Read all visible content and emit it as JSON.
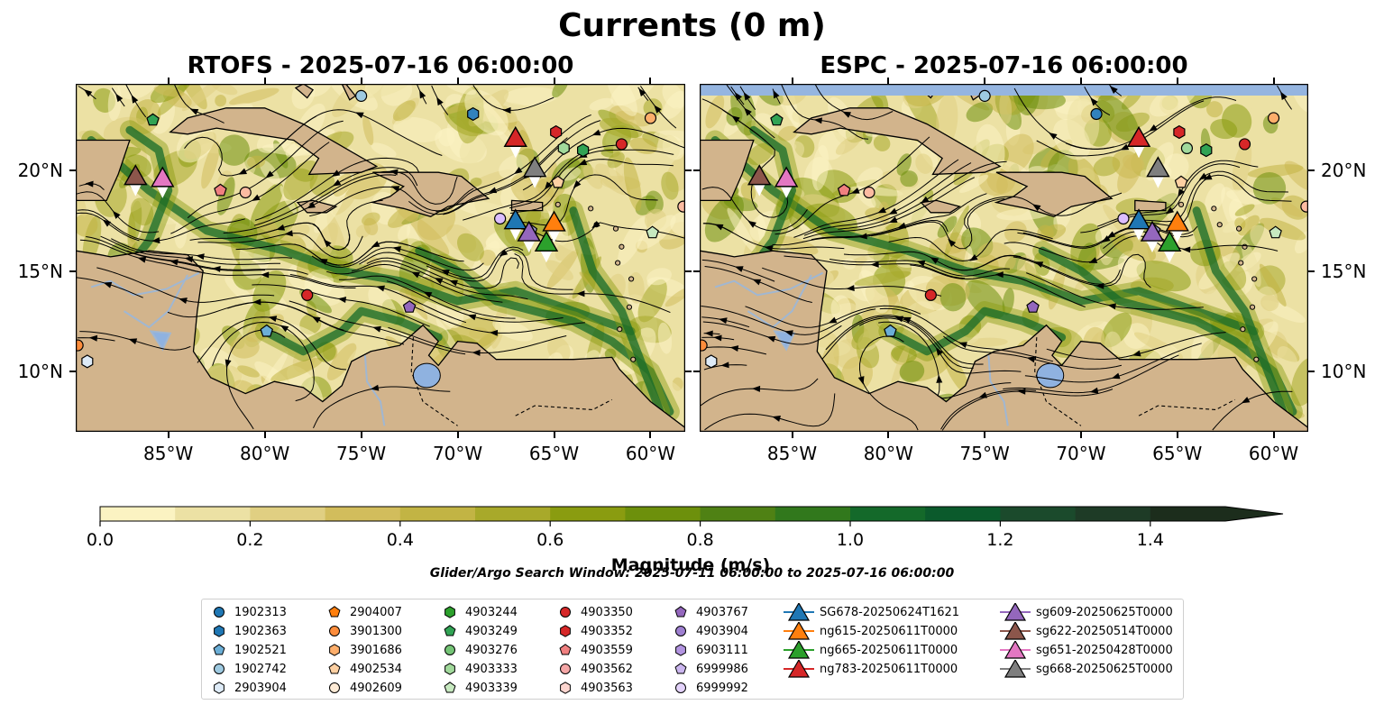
{
  "figure": {
    "suptitle": "Currents (0 m)",
    "search_window": "Glider/Argo Search Window: 2025-07-11 06:00:00 to 2025-07-16 06:00:00"
  },
  "chart_data": [
    {
      "type": "heatmap",
      "title": "RTOFS - 2025-07-16 06:00:00",
      "x_tick_labels": [
        "85°W",
        "80°W",
        "75°W",
        "70°W",
        "65°W",
        "60°W"
      ],
      "y_tick_labels": [
        "20°N",
        "15°N",
        "10°N"
      ],
      "x_range": [
        -89.8,
        -58.2
      ],
      "y_range": [
        7.0,
        24.3
      ],
      "x_ticks": [
        -85,
        -80,
        -75,
        -70,
        -65,
        -60
      ],
      "y_ticks": [
        20,
        15,
        10
      ],
      "markers": [
        {
          "lon": -75.0,
          "lat": 23.7,
          "color": "#9ecae1",
          "shape": "circle"
        },
        {
          "lon": -69.2,
          "lat": 22.8,
          "color": "#3182bd",
          "shape": "hexagon"
        },
        {
          "lon": -60.0,
          "lat": 22.6,
          "color": "#fdae6b",
          "shape": "circle"
        },
        {
          "lon": -61.5,
          "lat": 21.3,
          "color": "#d62728",
          "shape": "circle"
        },
        {
          "lon": -85.8,
          "lat": 22.5,
          "color": "#31a354",
          "shape": "pentagon"
        },
        {
          "lon": -64.9,
          "lat": 21.9,
          "color": "#d62728",
          "shape": "hexagon"
        },
        {
          "lon": -64.5,
          "lat": 21.1,
          "color": "#a1d99b",
          "shape": "hexagon"
        },
        {
          "lon": -63.5,
          "lat": 21.0,
          "color": "#31a354",
          "shape": "hexagon"
        },
        {
          "lon": -82.3,
          "lat": 19.0,
          "color": "#f08080",
          "shape": "pentagon"
        },
        {
          "lon": -81.0,
          "lat": 18.9,
          "color": "#fcbba1",
          "shape": "circle"
        },
        {
          "lon": -64.8,
          "lat": 19.4,
          "color": "#fdd0a2",
          "shape": "pentagon"
        },
        {
          "lon": -67.8,
          "lat": 17.6,
          "color": "#dcbeff",
          "shape": "circle"
        },
        {
          "lon": -66.2,
          "lat": 17.0,
          "color": "#9e9ac8",
          "shape": "pentagon"
        },
        {
          "lon": -58.3,
          "lat": 18.2,
          "color": "#fcbba1",
          "shape": "circle"
        },
        {
          "lon": -59.9,
          "lat": 16.9,
          "color": "#c7e9c0",
          "shape": "pentagon"
        },
        {
          "lon": -77.8,
          "lat": 13.8,
          "color": "#d62728",
          "shape": "circle"
        },
        {
          "lon": -72.5,
          "lat": 13.2,
          "color": "#9467bd",
          "shape": "pentagon"
        },
        {
          "lon": -79.9,
          "lat": 12.0,
          "color": "#6baed6",
          "shape": "pentagon"
        },
        {
          "lon": -89.7,
          "lat": 11.3,
          "color": "#fd8d3c",
          "shape": "circle"
        },
        {
          "lon": -89.2,
          "lat": 10.5,
          "color": "#deebf7",
          "shape": "hexagon"
        }
      ],
      "gliders": [
        {
          "lon": -67.0,
          "lat": 21.6,
          "color": "#d62728"
        },
        {
          "lon": -66.0,
          "lat": 20.1,
          "color": "#7f7f7f"
        },
        {
          "lon": -86.7,
          "lat": 19.7,
          "color": "#8c564b"
        },
        {
          "lon": -85.3,
          "lat": 19.6,
          "color": "#e377c2"
        },
        {
          "lon": -67.0,
          "lat": 17.5,
          "color": "#1f77b4"
        },
        {
          "lon": -65.0,
          "lat": 17.4,
          "color": "#ff7f0e"
        },
        {
          "lon": -66.3,
          "lat": 16.9,
          "color": "#9467bd"
        },
        {
          "lon": -65.4,
          "lat": 16.4,
          "color": "#2ca02c"
        }
      ]
    },
    {
      "type": "heatmap",
      "title": "ESPC - 2025-07-16 06:00:00",
      "x_tick_labels": [
        "85°W",
        "80°W",
        "75°W",
        "70°W",
        "65°W",
        "60°W"
      ],
      "y_tick_labels": [
        "20°N",
        "15°N",
        "10°N"
      ],
      "x_range": [
        -89.8,
        -58.2
      ],
      "y_range": [
        7.0,
        24.3
      ],
      "x_ticks": [
        -85,
        -80,
        -75,
        -70,
        -65,
        -60
      ],
      "y_ticks": [
        20,
        15,
        10
      ],
      "markers": [
        {
          "lon": -75.0,
          "lat": 23.7,
          "color": "#9ecae1",
          "shape": "circle"
        },
        {
          "lon": -69.2,
          "lat": 22.8,
          "color": "#3182bd",
          "shape": "circle"
        },
        {
          "lon": -60.0,
          "lat": 22.6,
          "color": "#fdae6b",
          "shape": "circle"
        },
        {
          "lon": -61.5,
          "lat": 21.3,
          "color": "#d62728",
          "shape": "circle"
        },
        {
          "lon": -85.8,
          "lat": 22.5,
          "color": "#31a354",
          "shape": "pentagon"
        },
        {
          "lon": -64.9,
          "lat": 21.9,
          "color": "#d62728",
          "shape": "hexagon"
        },
        {
          "lon": -64.5,
          "lat": 21.1,
          "color": "#a1d99b",
          "shape": "circle"
        },
        {
          "lon": -63.5,
          "lat": 21.0,
          "color": "#31a354",
          "shape": "hexagon"
        },
        {
          "lon": -82.3,
          "lat": 19.0,
          "color": "#f08080",
          "shape": "pentagon"
        },
        {
          "lon": -81.0,
          "lat": 18.9,
          "color": "#fcbba1",
          "shape": "circle"
        },
        {
          "lon": -64.8,
          "lat": 19.4,
          "color": "#fdd0a2",
          "shape": "pentagon"
        },
        {
          "lon": -67.8,
          "lat": 17.6,
          "color": "#dcbeff",
          "shape": "circle"
        },
        {
          "lon": -66.2,
          "lat": 17.0,
          "color": "#9e9ac8",
          "shape": "pentagon"
        },
        {
          "lon": -58.3,
          "lat": 18.2,
          "color": "#fcbba1",
          "shape": "circle"
        },
        {
          "lon": -59.9,
          "lat": 16.9,
          "color": "#c7e9c0",
          "shape": "pentagon"
        },
        {
          "lon": -77.8,
          "lat": 13.8,
          "color": "#d62728",
          "shape": "circle"
        },
        {
          "lon": -72.5,
          "lat": 13.2,
          "color": "#9467bd",
          "shape": "pentagon"
        },
        {
          "lon": -79.9,
          "lat": 12.0,
          "color": "#6baed6",
          "shape": "pentagon"
        },
        {
          "lon": -89.7,
          "lat": 11.3,
          "color": "#fd8d3c",
          "shape": "circle"
        },
        {
          "lon": -89.2,
          "lat": 10.5,
          "color": "#deebf7",
          "shape": "hexagon"
        }
      ],
      "gliders": [
        {
          "lon": -67.0,
          "lat": 21.6,
          "color": "#d62728"
        },
        {
          "lon": -66.0,
          "lat": 20.1,
          "color": "#7f7f7f"
        },
        {
          "lon": -86.7,
          "lat": 19.7,
          "color": "#8c564b"
        },
        {
          "lon": -85.3,
          "lat": 19.6,
          "color": "#e377c2"
        },
        {
          "lon": -67.0,
          "lat": 17.5,
          "color": "#1f77b4"
        },
        {
          "lon": -65.0,
          "lat": 17.4,
          "color": "#ff7f0e"
        },
        {
          "lon": -66.3,
          "lat": 16.9,
          "color": "#9467bd"
        },
        {
          "lon": -65.4,
          "lat": 16.4,
          "color": "#2ca02c"
        }
      ]
    }
  ],
  "colorbar": {
    "label": "Magnitude (m/s)",
    "min": 0.0,
    "max": 1.5,
    "extend": "max",
    "tick_labels": [
      "0.0",
      "0.2",
      "0.4",
      "0.6",
      "0.8",
      "1.0",
      "1.2",
      "1.4"
    ],
    "tick_values": [
      0.0,
      0.2,
      0.4,
      0.6,
      0.8,
      1.0,
      1.2,
      1.4
    ],
    "colors": [
      "#fbf3c2",
      "#ece1a4",
      "#e0cf82",
      "#d2bd5c",
      "#c2b444",
      "#a8a92a",
      "#8a9c10",
      "#6d900c",
      "#4f8114",
      "#31781c",
      "#14692a",
      "#0b5a2c",
      "#1b4a2c",
      "#1e3b26",
      "#1c2d1c"
    ]
  },
  "legend": {
    "columns": [
      [
        {
          "label": "1902313",
          "shape": "circle",
          "color": "#1f77b4"
        },
        {
          "label": "1902363",
          "shape": "hexagon",
          "color": "#1f77b4"
        },
        {
          "label": "1902521",
          "shape": "pentagon",
          "color": "#6baed6"
        },
        {
          "label": "1902742",
          "shape": "circle",
          "color": "#9ecae1"
        },
        {
          "label": "2903904",
          "shape": "hexagon",
          "color": "#deebf7"
        }
      ],
      [
        {
          "label": "2904007",
          "shape": "pentagon",
          "color": "#ff7f0e"
        },
        {
          "label": "3901300",
          "shape": "circle",
          "color": "#fd8d3c"
        },
        {
          "label": "3901686",
          "shape": "hexagon",
          "color": "#fdae6b"
        },
        {
          "label": "4902534",
          "shape": "pentagon",
          "color": "#fdd0a2"
        },
        {
          "label": "4902609",
          "shape": "circle",
          "color": "#feebd6"
        }
      ],
      [
        {
          "label": "4903244",
          "shape": "hexagon",
          "color": "#2ca02c"
        },
        {
          "label": "4903249",
          "shape": "pentagon",
          "color": "#31a354"
        },
        {
          "label": "4903276",
          "shape": "circle",
          "color": "#74c476"
        },
        {
          "label": "4903333",
          "shape": "hexagon",
          "color": "#a1d99b"
        },
        {
          "label": "4903339",
          "shape": "pentagon",
          "color": "#c7e9c0"
        }
      ],
      [
        {
          "label": "4903350",
          "shape": "circle",
          "color": "#d62728"
        },
        {
          "label": "4903352",
          "shape": "hexagon",
          "color": "#d62728"
        },
        {
          "label": "4903559",
          "shape": "pentagon",
          "color": "#f08080"
        },
        {
          "label": "4903562",
          "shape": "circle",
          "color": "#f4a6a6"
        },
        {
          "label": "4903563",
          "shape": "hexagon",
          "color": "#fcd5cf"
        }
      ],
      [
        {
          "label": "4903767",
          "shape": "pentagon",
          "color": "#9467bd"
        },
        {
          "label": "4903904",
          "shape": "circle",
          "color": "#9e7fd0"
        },
        {
          "label": "6903111",
          "shape": "hexagon",
          "color": "#b294e0"
        },
        {
          "label": "6999986",
          "shape": "pentagon",
          "color": "#cbb6ef"
        },
        {
          "label": "6999992",
          "shape": "circle",
          "color": "#e3d2fa"
        }
      ],
      [
        {
          "label": "SG678-20250624T1621",
          "shape": "triangle",
          "color": "#1f77b4"
        },
        {
          "label": "ng615-20250611T0000",
          "shape": "triangle",
          "color": "#ff7f0e"
        },
        {
          "label": "ng665-20250611T0000",
          "shape": "triangle",
          "color": "#2ca02c"
        },
        {
          "label": "ng783-20250611T0000",
          "shape": "triangle",
          "color": "#d62728"
        }
      ],
      [
        {
          "label": "sg609-20250625T0000",
          "shape": "triangle",
          "color": "#9467bd"
        },
        {
          "label": "sg622-20250514T0000",
          "shape": "triangle",
          "color": "#8c564b"
        },
        {
          "label": "sg651-20250428T0000",
          "shape": "triangle",
          "color": "#e377c2"
        },
        {
          "label": "sg668-20250625T0000",
          "shape": "triangle",
          "color": "#7f7f7f"
        }
      ]
    ]
  },
  "colors": {
    "land": "#d2b48c",
    "lakes": "#8fb2e0",
    "rivers": "#a0b7d2",
    "streamline": "#000000"
  }
}
